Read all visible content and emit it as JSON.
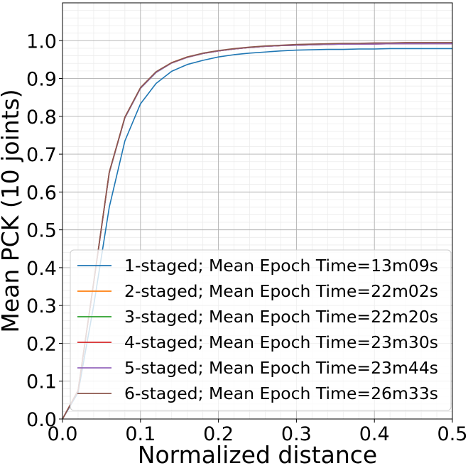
{
  "chart_data": {
    "type": "line",
    "title": "",
    "xlabel": "Normalized distance",
    "ylabel": "Mean PCK (10 joints)",
    "xlim": [
      0.0,
      0.5
    ],
    "ylim": [
      0.0,
      1.1
    ],
    "xticks": [
      0.0,
      0.1,
      0.2,
      0.3,
      0.4,
      0.5
    ],
    "xtick_labels": [
      "0.0",
      "0.1",
      "0.2",
      "0.3",
      "0.4",
      "0.5"
    ],
    "yticks": [
      0.0,
      0.1,
      0.2,
      0.3,
      0.4,
      0.5,
      0.6,
      0.7,
      0.8,
      0.9,
      1.0
    ],
    "ytick_labels": [
      "0.0",
      "0.1",
      "0.2",
      "0.3",
      "0.4",
      "0.5",
      "0.6",
      "0.7",
      "0.8",
      "0.9",
      "1.0"
    ],
    "grid": true,
    "minor_grid": true,
    "legend_position": "lower-right",
    "x": [
      0.0,
      0.02,
      0.04,
      0.06,
      0.08,
      0.1,
      0.12,
      0.14,
      0.16,
      0.18,
      0.2,
      0.22,
      0.24,
      0.26,
      0.28,
      0.3,
      0.32,
      0.34,
      0.36,
      0.38,
      0.4,
      0.42,
      0.44,
      0.46,
      0.48,
      0.5
    ],
    "series": [
      {
        "name": "1-staged; Mean Epoch Time=13m09s",
        "color": "#1f77b4",
        "values": [
          0.0,
          0.07,
          0.3,
          0.56,
          0.735,
          0.833,
          0.887,
          0.919,
          0.937,
          0.948,
          0.957,
          0.963,
          0.967,
          0.97,
          0.973,
          0.975,
          0.976,
          0.977,
          0.977,
          0.978,
          0.978,
          0.979,
          0.979,
          0.979,
          0.979,
          0.979
        ]
      },
      {
        "name": "2-staged; Mean Epoch Time=22m02s",
        "color": "#ff7f0e",
        "values": [
          0.0,
          0.075,
          0.36,
          0.652,
          0.797,
          0.875,
          0.917,
          0.942,
          0.957,
          0.966,
          0.973,
          0.978,
          0.982,
          0.985,
          0.987,
          0.989,
          0.99,
          0.991,
          0.992,
          0.992,
          0.993,
          0.993,
          0.994,
          0.994,
          0.994,
          0.994
        ]
      },
      {
        "name": "3-staged; Mean Epoch Time=22m20s",
        "color": "#2ca02c",
        "values": [
          0.0,
          0.075,
          0.36,
          0.651,
          0.796,
          0.874,
          0.916,
          0.941,
          0.956,
          0.966,
          0.973,
          0.978,
          0.982,
          0.985,
          0.987,
          0.988,
          0.989,
          0.99,
          0.991,
          0.991,
          0.992,
          0.992,
          0.992,
          0.992,
          0.993,
          0.993
        ]
      },
      {
        "name": "4-staged; Mean Epoch Time=23m30s",
        "color": "#d62728",
        "values": [
          0.0,
          0.075,
          0.36,
          0.652,
          0.797,
          0.875,
          0.917,
          0.941,
          0.956,
          0.966,
          0.973,
          0.978,
          0.982,
          0.985,
          0.987,
          0.988,
          0.989,
          0.99,
          0.991,
          0.991,
          0.991,
          0.992,
          0.992,
          0.992,
          0.992,
          0.992
        ]
      },
      {
        "name": "5-staged; Mean Epoch Time=23m44s",
        "color": "#9467bd",
        "values": [
          0.0,
          0.075,
          0.36,
          0.651,
          0.796,
          0.874,
          0.916,
          0.941,
          0.956,
          0.966,
          0.973,
          0.978,
          0.982,
          0.985,
          0.987,
          0.988,
          0.989,
          0.99,
          0.991,
          0.991,
          0.991,
          0.992,
          0.992,
          0.992,
          0.992,
          0.992
        ]
      },
      {
        "name": "6-staged; Mean Epoch Time=26m33s",
        "color": "#8c564b",
        "values": [
          0.0,
          0.076,
          0.362,
          0.653,
          0.798,
          0.876,
          0.918,
          0.942,
          0.957,
          0.967,
          0.974,
          0.979,
          0.983,
          0.986,
          0.988,
          0.99,
          0.991,
          0.992,
          0.993,
          0.993,
          0.994,
          0.994,
          0.995,
          0.995,
          0.995,
          0.995
        ]
      }
    ]
  }
}
